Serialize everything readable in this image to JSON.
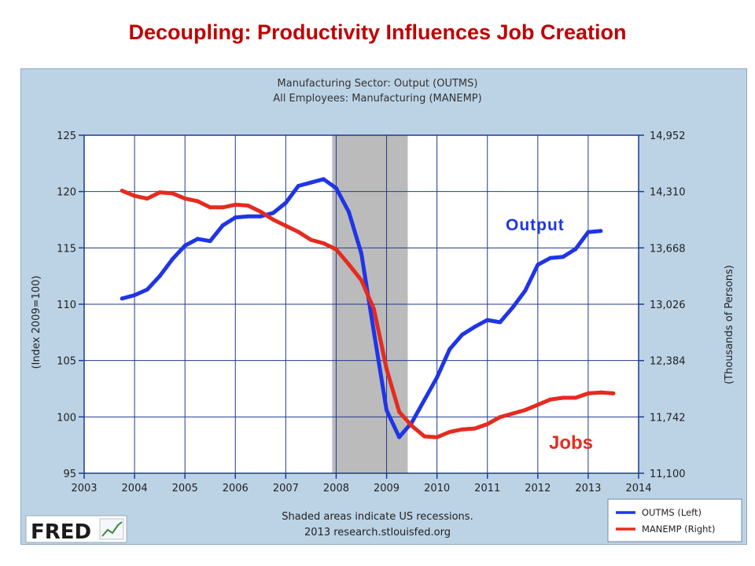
{
  "slide_title": "Decoupling: Productivity Influences Job Creation",
  "chart_data": {
    "type": "line",
    "subtitle_lines": [
      "Manufacturing Sector: Output (OUTMS)",
      "All Employees: Manufacturing (MANEMP)"
    ],
    "x_ticks": [
      "2003",
      "2004",
      "2005",
      "2006",
      "2007",
      "2008",
      "2009",
      "2010",
      "2011",
      "2012",
      "2013",
      "2014"
    ],
    "xlim": [
      2003,
      2014
    ],
    "left_axis": {
      "label": "(Index 2009=100)",
      "ticks": [
        "95",
        "100",
        "105",
        "110",
        "115",
        "120",
        "125"
      ],
      "ylim": [
        95,
        125
      ]
    },
    "right_axis": {
      "label": "(Thousands of Persons)",
      "ticks": [
        "11,100",
        "11,742",
        "12,384",
        "13,026",
        "13,668",
        "14,310",
        "14,952"
      ],
      "ylim": [
        11100,
        14952
      ]
    },
    "recession": {
      "start": 2007.92,
      "end": 2009.42
    },
    "series": [
      {
        "name": "OUTMS (Left)",
        "color": "#1f35e6",
        "axis": "left",
        "x": [
          2003.75,
          2004.0,
          2004.25,
          2004.5,
          2004.75,
          2005.0,
          2005.25,
          2005.5,
          2005.75,
          2006.0,
          2006.25,
          2006.5,
          2006.75,
          2007.0,
          2007.25,
          2007.5,
          2007.75,
          2008.0,
          2008.25,
          2008.5,
          2008.75,
          2009.0,
          2009.25,
          2009.5,
          2009.75,
          2010.0,
          2010.25,
          2010.5,
          2010.75,
          2011.0,
          2011.25,
          2011.5,
          2011.75,
          2012.0,
          2012.25,
          2012.5,
          2012.75,
          2013.0,
          2013.25
        ],
        "values": [
          110.5,
          110.8,
          111.3,
          112.5,
          114.0,
          115.2,
          115.8,
          115.6,
          117.0,
          117.7,
          117.8,
          117.8,
          118.1,
          119.0,
          120.5,
          120.8,
          121.1,
          120.3,
          118.2,
          114.5,
          107.5,
          100.6,
          98.2,
          99.5,
          101.5,
          103.5,
          106.0,
          107.3,
          108.0,
          108.6,
          108.4,
          109.7,
          111.2,
          113.5,
          114.1,
          114.2,
          114.9,
          116.4,
          116.5
        ]
      },
      {
        "name": "MANEMP (Right)",
        "color": "#e52b1f",
        "axis": "right",
        "x": [
          2003.75,
          2004.0,
          2004.25,
          2004.5,
          2004.75,
          2005.0,
          2005.25,
          2005.5,
          2005.75,
          2006.0,
          2006.25,
          2006.5,
          2006.75,
          2007.0,
          2007.25,
          2007.5,
          2007.75,
          2008.0,
          2008.25,
          2008.5,
          2008.75,
          2009.0,
          2009.25,
          2009.5,
          2009.75,
          2010.0,
          2010.25,
          2010.5,
          2010.75,
          2011.0,
          2011.25,
          2011.5,
          2011.75,
          2012.0,
          2012.25,
          2012.5,
          2012.75,
          2013.0,
          2013.25,
          2013.5
        ],
        "values": [
          14320,
          14260,
          14230,
          14300,
          14290,
          14230,
          14200,
          14130,
          14130,
          14160,
          14150,
          14080,
          13990,
          13920,
          13850,
          13760,
          13720,
          13650,
          13480,
          13300,
          12970,
          12290,
          11800,
          11640,
          11520,
          11510,
          11570,
          11600,
          11610,
          11660,
          11740,
          11780,
          11820,
          11880,
          11940,
          11960,
          11960,
          12010,
          12020,
          12010
        ]
      }
    ],
    "annotations": {
      "output": "Output",
      "jobs": "Jobs"
    },
    "note_lines": [
      "Shaded areas indicate US recessions.",
      "2013 research.stlouisfed.org"
    ],
    "logo": "FRED"
  },
  "colors": {
    "title": "#c00000",
    "frame_bg": "#bcd3e6",
    "plot_bg": "#ffffff",
    "grid": "#1f3b8f",
    "recession": "#bbbbbb"
  }
}
